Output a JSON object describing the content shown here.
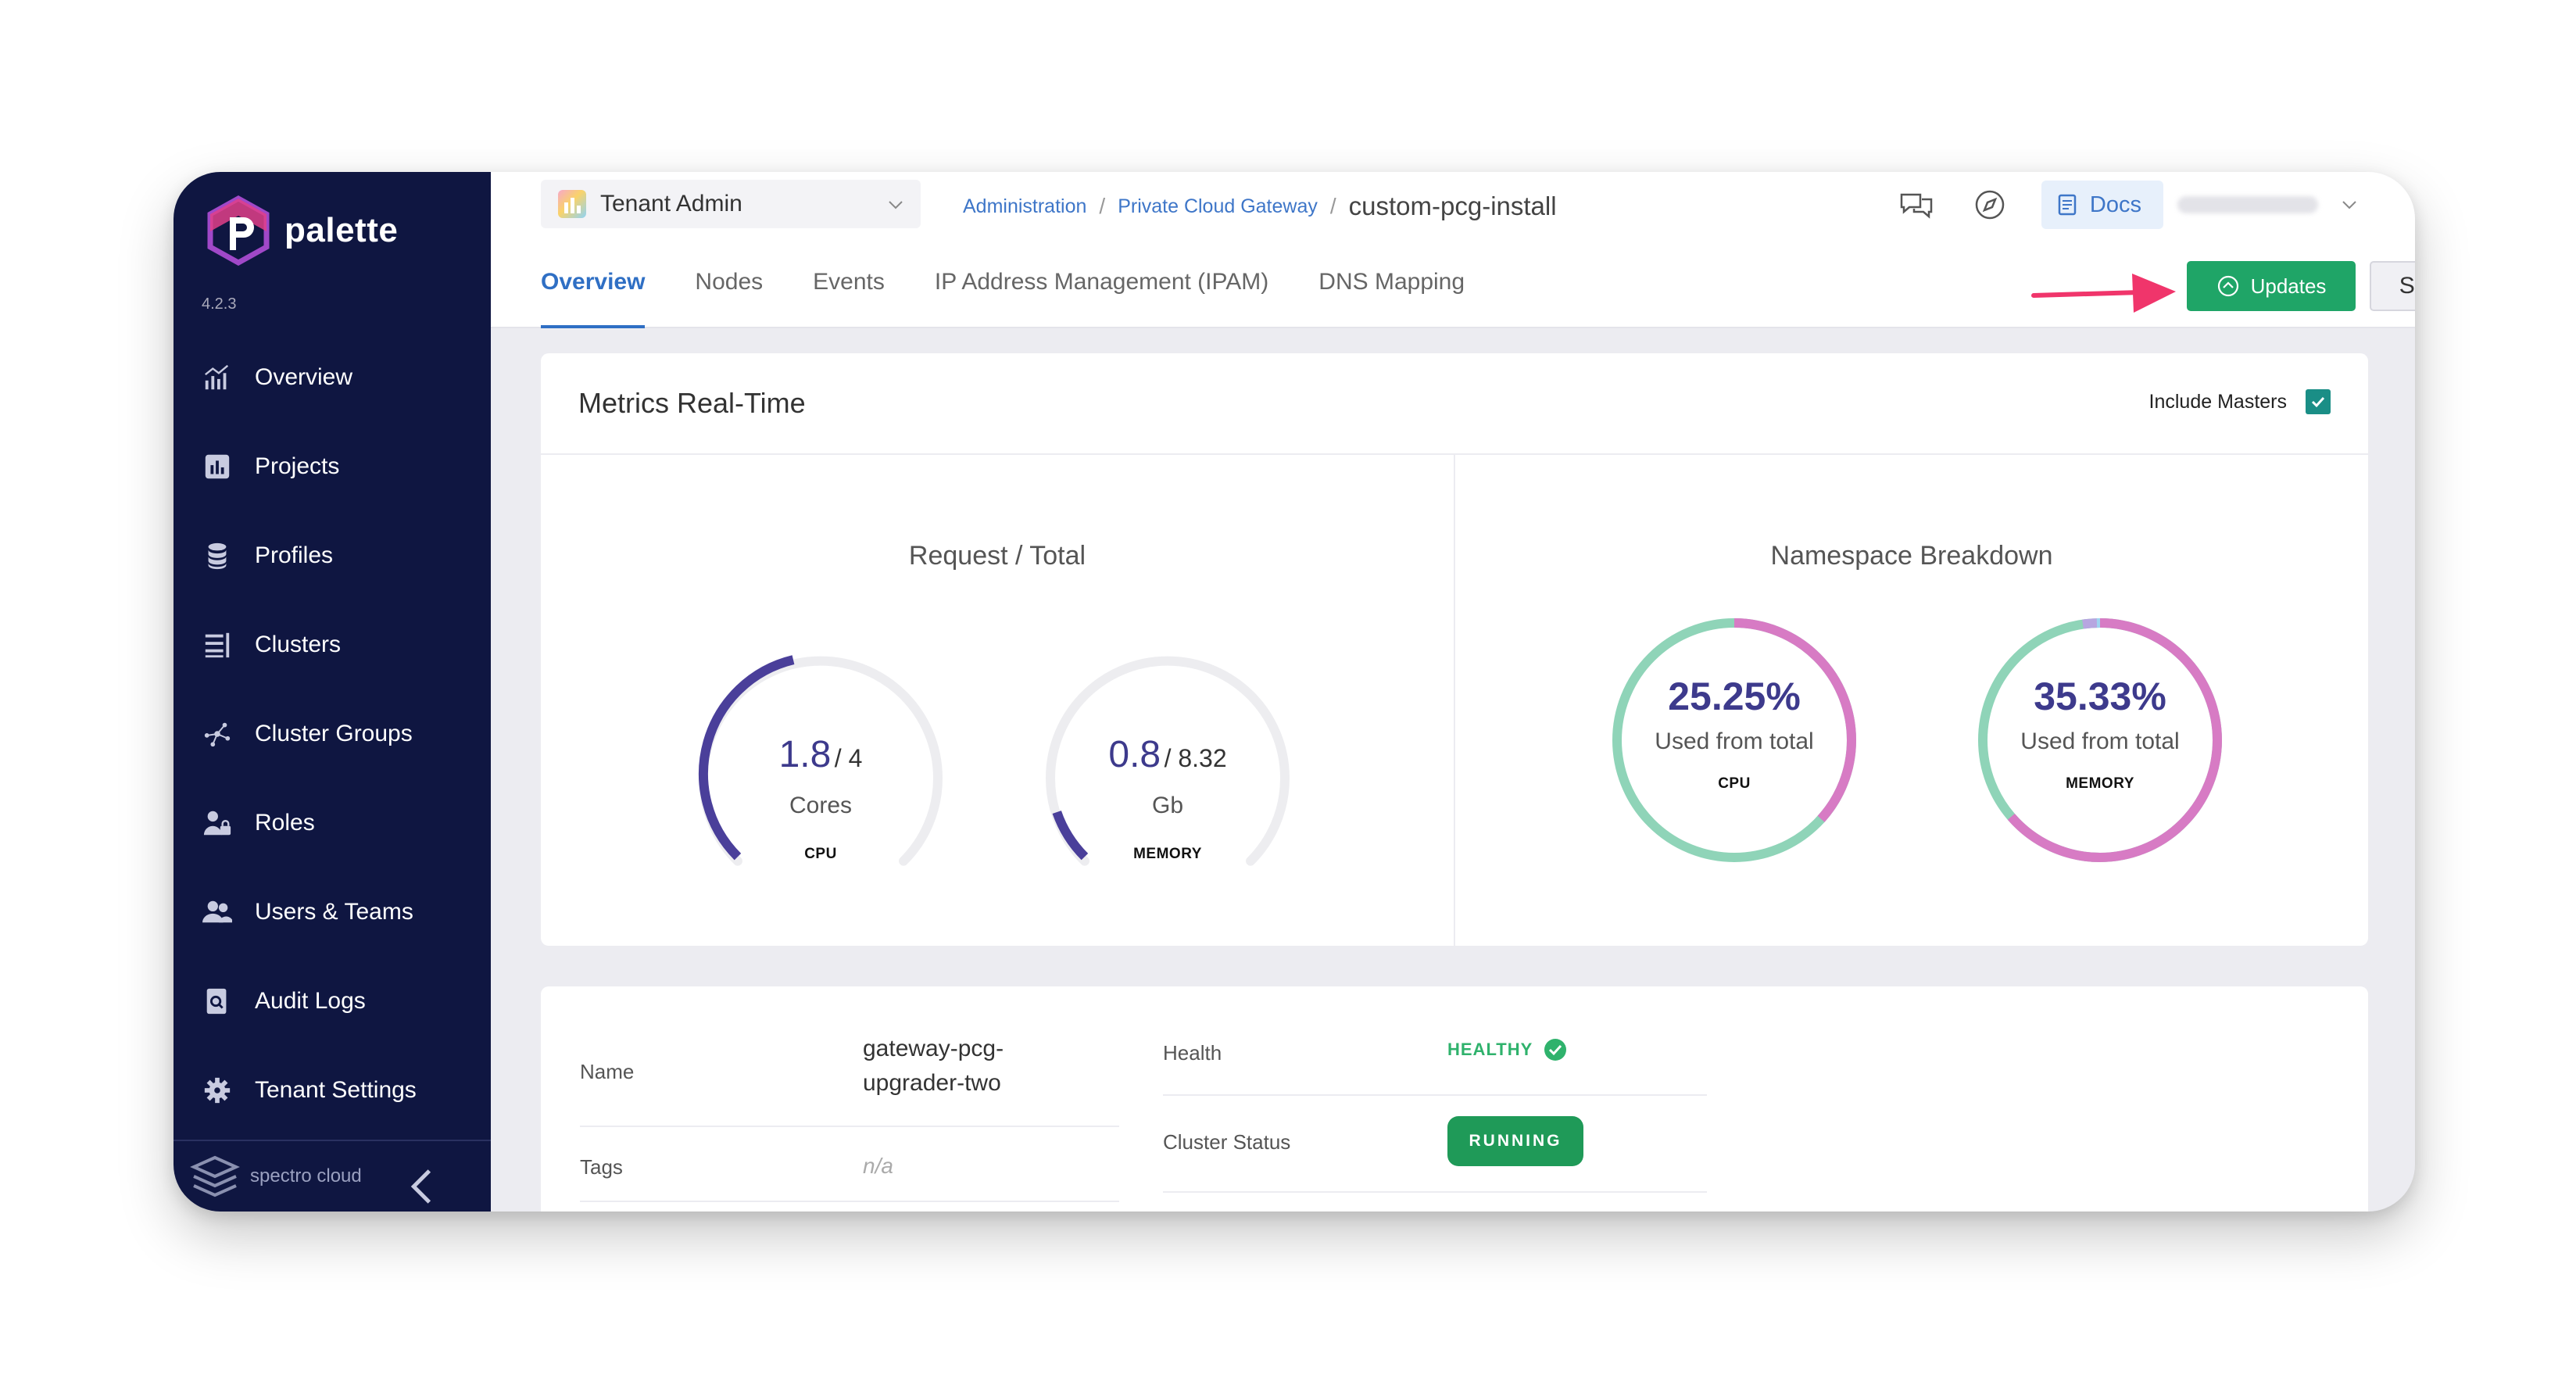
{
  "app": {
    "name": "palette",
    "version": "4.2.3",
    "brand": "spectro cloud"
  },
  "sidebar": {
    "items": [
      {
        "label": "Overview",
        "icon": "chart-icon"
      },
      {
        "label": "Projects",
        "icon": "bar-chart-icon"
      },
      {
        "label": "Profiles",
        "icon": "database-icon"
      },
      {
        "label": "Clusters",
        "icon": "list-icon"
      },
      {
        "label": "Cluster Groups",
        "icon": "network-icon"
      },
      {
        "label": "Roles",
        "icon": "user-lock-icon"
      },
      {
        "label": "Users & Teams",
        "icon": "users-icon"
      },
      {
        "label": "Audit Logs",
        "icon": "search-doc-icon"
      },
      {
        "label": "Tenant Settings",
        "icon": "gear-icon"
      }
    ]
  },
  "topbar": {
    "scope": "Tenant Admin",
    "breadcrumb": {
      "first": "Administration",
      "second": "Private Cloud Gateway",
      "current": "custom-pcg-install"
    },
    "docs_label": "Docs",
    "tabs": [
      "Overview",
      "Nodes",
      "Events",
      "IP Address Management (IPAM)",
      "DNS Mapping"
    ],
    "updates_label": "Updates",
    "settings_label": "Settings"
  },
  "metrics": {
    "title": "Metrics Real-Time",
    "include_masters_label": "Include Masters",
    "include_masters": true,
    "request_panel_title": "Request / Total",
    "cpu_gauge": {
      "used": "1.8",
      "total": "/ 4",
      "unit": "Cores",
      "caption": "CPU",
      "fraction": 0.45
    },
    "memory_gauge": {
      "used": "0.8",
      "total": "/ 8.32",
      "unit": "Gb",
      "caption": "MEMORY",
      "fraction": 0.096
    },
    "namespace_panel_title": "Namespace Breakdown",
    "cpu_donut": {
      "percent": "25.25%",
      "label": "Used from total",
      "caption": "CPU"
    },
    "memory_donut": {
      "percent": "35.33%",
      "label": "Used from total",
      "caption": "MEMORY"
    }
  },
  "details": {
    "name_label": "Name",
    "name_value_line1": "gateway-pcg-",
    "name_value_line2": "upgrader-two",
    "tags_label": "Tags",
    "tags_value": "n/a",
    "health_label": "Health",
    "health_value": "HEALTHY",
    "status_label": "Cluster Status",
    "status_value": "RUNNING"
  },
  "colors": {
    "sidebar_bg": "#0f1641",
    "accent_blue": "#2f6fc4",
    "updates_green": "#1fa567",
    "gauge_purple": "#4a3f9a",
    "donut_green": "#8fd4b8",
    "donut_pink": "#d77bc4",
    "arrow_red": "#f0356b"
  }
}
